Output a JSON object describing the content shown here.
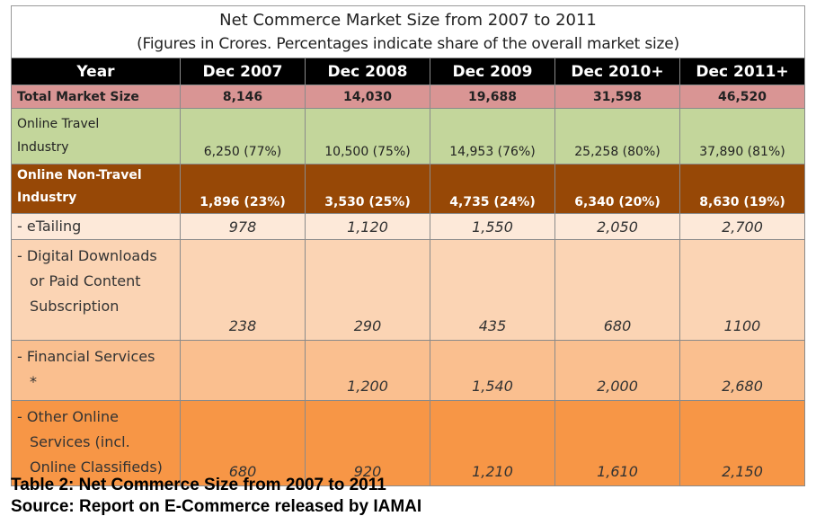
{
  "title": "Net Commerce Market Size from 2007 to 2011",
  "subtitle": "(Figures in Crores. Percentages indicate share of the overall market size)",
  "columns": [
    "Year",
    "Dec 2007",
    "Dec 2008",
    "Dec 2009",
    "Dec 2010+",
    "Dec 2011+"
  ],
  "rows": [
    {
      "label": [
        "Total Market Size"
      ],
      "values": [
        "8,146",
        "14,030",
        "19,688",
        "31,598",
        "46,520"
      ]
    },
    {
      "label": [
        "Online Travel",
        "Industry"
      ],
      "values": [
        "6,250 (77%)",
        "10,500 (75%)",
        "14,953 (76%)",
        "25,258 (80%)",
        "37,890 (81%)"
      ]
    },
    {
      "label": [
        "Online Non-Travel",
        "Industry"
      ],
      "values": [
        "1,896 (23%)",
        "3,530 (25%)",
        "4,735 (24%)",
        "6,340 (20%)",
        "8,630 (19%)"
      ]
    },
    {
      "label": [
        "- eTailing"
      ],
      "values": [
        "978",
        "1,120",
        "1,550",
        "2,050",
        "2,700"
      ]
    },
    {
      "label": [
        "- Digital Downloads",
        "or Paid Content",
        "Subscription"
      ],
      "values": [
        "238",
        "290",
        "435",
        "680",
        "1100"
      ]
    },
    {
      "label": [
        "- Financial Services",
        "*"
      ],
      "values": [
        "",
        "1,200",
        "1,540",
        "2,000",
        "2,680"
      ]
    },
    {
      "label": [
        "- Other Online",
        "Services (incl.",
        "Online Classifieds)"
      ],
      "values": [
        "680",
        "920",
        "1,210",
        "1,610",
        "2,150"
      ]
    }
  ],
  "caption": {
    "line1": "Table 2: Net Commerce Size from 2007 to 2011",
    "line2": "Source: Report on E-Commerce released by IAMAI"
  },
  "colors": {
    "header": "#000000",
    "total": "#d99594",
    "travel": "#c3d69b",
    "non_travel": "#974806",
    "etailing": "#fde9d9",
    "digital": "#fbd4b4",
    "financial": "#fabf8f",
    "other": "#f79646"
  }
}
